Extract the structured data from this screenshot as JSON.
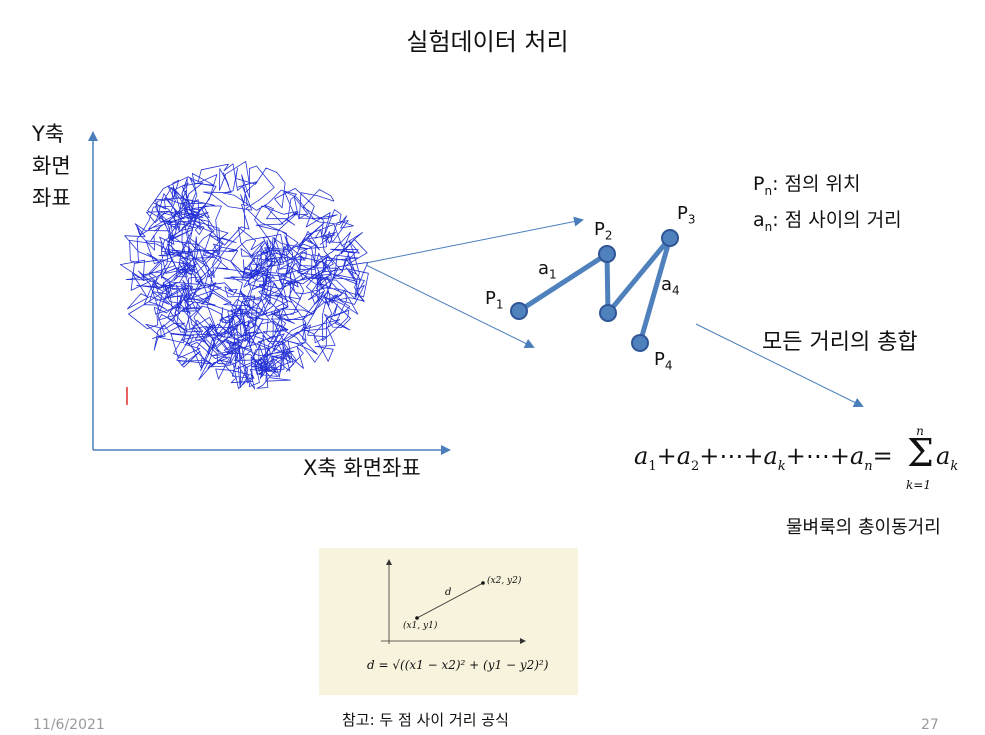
{
  "slide": {
    "title": "실험데이터 처리",
    "y_axis_label_lines": [
      "Y축",
      "화면",
      "좌표"
    ],
    "x_axis_label": "X축 화면좌표",
    "legend": {
      "pn_symbol": "P",
      "pn_sub": "n",
      "pn_text": ": 점의 위치",
      "an_symbol": "a",
      "an_sub": "n",
      "an_text": ": 점 사이의 거리"
    },
    "points": [
      {
        "symbol": "P",
        "sub": "1"
      },
      {
        "symbol": "P",
        "sub": "2"
      },
      {
        "symbol": "P",
        "sub": "3"
      },
      {
        "symbol": "P",
        "sub": "4"
      }
    ],
    "segments": [
      {
        "symbol": "a",
        "sub": "1"
      },
      {
        "symbol": "a",
        "sub": "4"
      }
    ],
    "sum_label": "모든 거리의 총합",
    "sum_formula": {
      "terms": [
        "a",
        "1",
        "+",
        "a",
        "2",
        "+⋯+",
        "a",
        "k",
        "+⋯+",
        "a",
        "n",
        "="
      ],
      "sigma_upper": "n",
      "sigma_lower": "k=1",
      "sigma_term": "a",
      "sigma_term_sub": "k"
    },
    "total_caption": "물벼룩의 총이동거리",
    "reference": {
      "point1": "(x1, y1)",
      "point2": "(x2, y2)",
      "d_label": "d",
      "formula": "d = √((x1 − x2)² + (y1 − y2)²)",
      "caption": "참고: 두 점 사이 거리 공식"
    },
    "footer": {
      "date": "11/6/2021",
      "page_number": "27"
    }
  },
  "colors": {
    "arrow": "#4a7ebb",
    "trajectory": "#2431d6",
    "marker_fill": "#4f81bd",
    "marker_stroke": "#2f5597",
    "segment": "#4f81bd",
    "reference_bg": "#f7f3dc",
    "footer": "#9a9a9a",
    "red_mark": "#e03030"
  },
  "icons": [
    "sigma-symbol",
    "square-root-symbol"
  ]
}
